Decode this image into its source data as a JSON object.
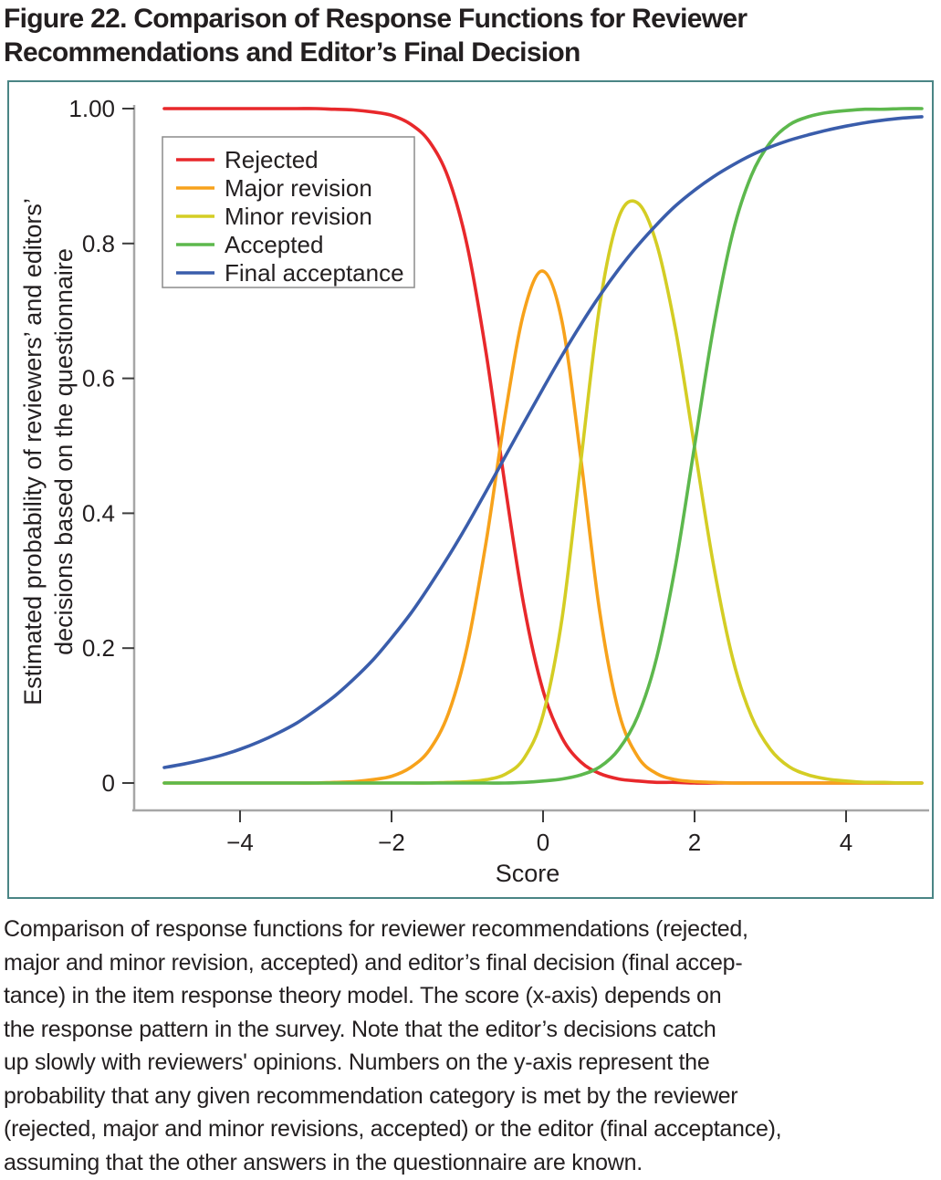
{
  "figure": {
    "title": "Figure 22. Comparison of Response Functions for Reviewer Recommendations and Editor’s Final Decision",
    "caption_lines": [
      "Comparison of response functions for reviewer recommendations (rejected,",
      "major and minor revision, accepted) and editor’s final decision (final accep-",
      "tance) in the item response theory model. The score (x-axis) depends on",
      "the response pattern in the survey. Note that the editor’s decisions catch",
      "up slowly with reviewers' opinions. Numbers on the y-axis represent the",
      "probability that any given recommendation category is met by the reviewer",
      "(rejected, major and minor revisions, accepted) or the editor (final acceptance),",
      "assuming that the other answers in the questionnaire are known."
    ]
  },
  "colors": {
    "panel_border": "#4a8585",
    "axis_line": "#a6a6a6",
    "tick_mark": "#3c3c3c",
    "legend_border": "#8c8c8c",
    "text": "#231f20",
    "background": "#ffffff"
  },
  "chart_data": {
    "type": "line",
    "title": "",
    "xlabel": "Score",
    "ylabel_lines": [
      "Estimated probability of reviewers’ and editors’",
      "decisions based on the questionnaire"
    ],
    "xlim": [
      -5,
      5
    ],
    "ylim": [
      0,
      1
    ],
    "grid": false,
    "legend_position": "top-left",
    "x_ticks": [
      {
        "v": -4,
        "label": "−4"
      },
      {
        "v": -2,
        "label": "−2"
      },
      {
        "v": 0,
        "label": "0"
      },
      {
        "v": 2,
        "label": "2"
      },
      {
        "v": 4,
        "label": "4"
      }
    ],
    "y_ticks": [
      {
        "v": 0,
        "label": "0"
      },
      {
        "v": 0.2,
        "label": "0.2"
      },
      {
        "v": 0.4,
        "label": "0.4"
      },
      {
        "v": 0.6,
        "label": "0.6"
      },
      {
        "v": 0.8,
        "label": "0.8"
      },
      {
        "v": 1,
        "label": "1.00"
      }
    ],
    "x": [
      -5,
      -4.75,
      -4.5,
      -4.25,
      -4,
      -3.75,
      -3.5,
      -3.25,
      -3,
      -2.75,
      -2.5,
      -2.25,
      -2,
      -1.75,
      -1.5,
      -1.25,
      -1,
      -0.75,
      -0.5,
      -0.25,
      0,
      0.25,
      0.5,
      0.75,
      1,
      1.25,
      1.5,
      1.75,
      2,
      2.25,
      2.5,
      2.75,
      3,
      3.25,
      3.5,
      3.75,
      4,
      4.25,
      4.5,
      4.75,
      5
    ],
    "series": [
      {
        "name": "Rejected",
        "color": "#e8282b",
        "values": [
          1,
          1,
          1,
          1,
          1,
          1,
          1,
          1,
          1,
          0.999,
          0.998,
          0.995,
          0.99,
          0.977,
          0.951,
          0.897,
          0.796,
          0.636,
          0.44,
          0.261,
          0.137,
          0.067,
          0.031,
          0.014,
          0.006,
          0.003,
          0.001,
          0.001,
          0,
          0,
          0,
          0,
          0,
          0,
          0,
          0,
          0,
          0,
          0,
          0,
          0
        ]
      },
      {
        "name": "Major revision",
        "color": "#f7a21b",
        "values": [
          0,
          0,
          0,
          0,
          0,
          0,
          0,
          0,
          0,
          0.001,
          0.002,
          0.005,
          0.01,
          0.023,
          0.049,
          0.103,
          0.203,
          0.359,
          0.546,
          0.7,
          0.759,
          0.684,
          0.48,
          0.252,
          0.105,
          0.039,
          0.014,
          0.005,
          0.002,
          0.001,
          0,
          0,
          0,
          0,
          0,
          0,
          0,
          0,
          0,
          0,
          0
        ]
      },
      {
        "name": "Minor revision",
        "color": "#d4cd24",
        "values": [
          0,
          0,
          0,
          0,
          0,
          0,
          0,
          0,
          0,
          0,
          0,
          0,
          0,
          0,
          0,
          0.001,
          0.002,
          0.005,
          0.013,
          0.037,
          0.101,
          0.244,
          0.478,
          0.71,
          0.839,
          0.86,
          0.799,
          0.671,
          0.498,
          0.323,
          0.186,
          0.099,
          0.05,
          0.024,
          0.012,
          0.006,
          0.003,
          0.001,
          0.001,
          0,
          0
        ]
      },
      {
        "name": "Accepted",
        "color": "#5db84d",
        "values": [
          0,
          0,
          0,
          0,
          0,
          0,
          0,
          0,
          0,
          0,
          0,
          0,
          0,
          0,
          0,
          0,
          0,
          0,
          0,
          0.001,
          0.003,
          0.006,
          0.012,
          0.024,
          0.05,
          0.099,
          0.186,
          0.324,
          0.5,
          0.676,
          0.814,
          0.901,
          0.95,
          0.976,
          0.988,
          0.994,
          0.997,
          0.999,
          0.999,
          1,
          1
        ]
      },
      {
        "name": "Final acceptance",
        "color": "#3a5dab",
        "values": [
          0.023,
          0.028,
          0.034,
          0.041,
          0.05,
          0.061,
          0.074,
          0.089,
          0.108,
          0.129,
          0.154,
          0.182,
          0.215,
          0.251,
          0.292,
          0.336,
          0.383,
          0.433,
          0.484,
          0.535,
          0.585,
          0.634,
          0.68,
          0.723,
          0.762,
          0.797,
          0.828,
          0.856,
          0.879,
          0.899,
          0.916,
          0.931,
          0.943,
          0.953,
          0.961,
          0.968,
          0.974,
          0.979,
          0.983,
          0.986,
          0.988
        ]
      }
    ]
  }
}
